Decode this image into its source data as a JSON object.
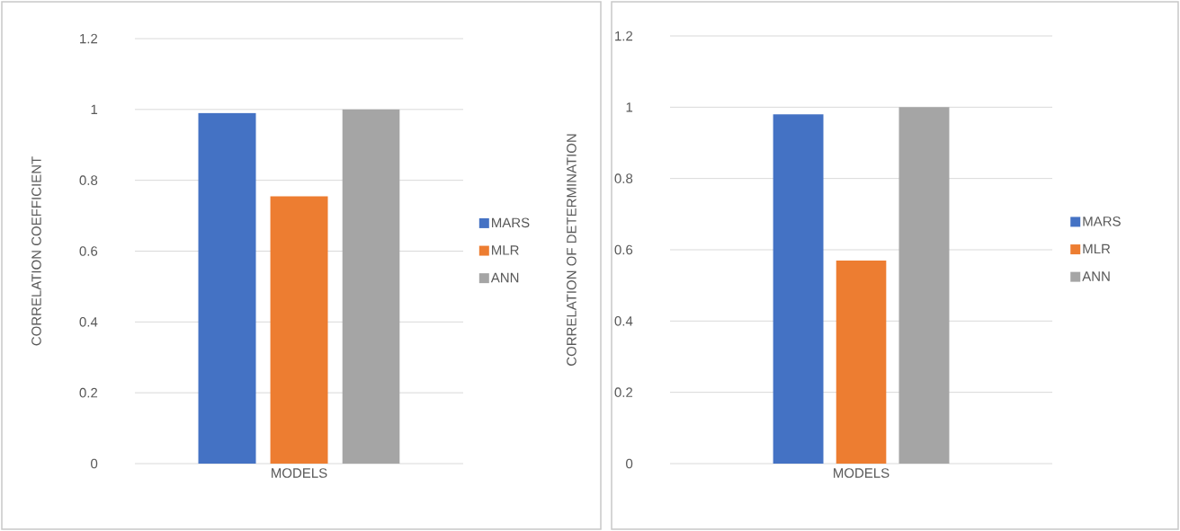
{
  "chart_data": [
    {
      "type": "bar",
      "ylabel": "CORRELATION COEFFICIENT",
      "categories": [
        "MODELS"
      ],
      "series": [
        {
          "name": "MARS",
          "color": "#4472c4",
          "values": [
            0.99
          ]
        },
        {
          "name": "MLR",
          "color": "#ed7d31",
          "values": [
            0.755
          ]
        },
        {
          "name": "ANN",
          "color": "#a5a5a5",
          "values": [
            1.0
          ]
        }
      ],
      "ylim": [
        0,
        1.2
      ],
      "yticks": [
        0,
        0.2,
        0.4,
        0.6,
        0.8,
        1,
        1.2
      ],
      "grid": "y",
      "legend": "right"
    },
    {
      "type": "bar",
      "ylabel": "CORRELATION OF DETERMINATION",
      "categories": [
        "MODELS"
      ],
      "series": [
        {
          "name": "MARS",
          "color": "#4472c4",
          "values": [
            0.98
          ]
        },
        {
          "name": "MLR",
          "color": "#ed7d31",
          "values": [
            0.57
          ]
        },
        {
          "name": "ANN",
          "color": "#a5a5a5",
          "values": [
            1.0
          ]
        }
      ],
      "ylim": [
        0,
        1.2
      ],
      "yticks": [
        0,
        0.2,
        0.4,
        0.6,
        0.8,
        1,
        1.2
      ],
      "grid": "y",
      "legend": "right"
    }
  ]
}
